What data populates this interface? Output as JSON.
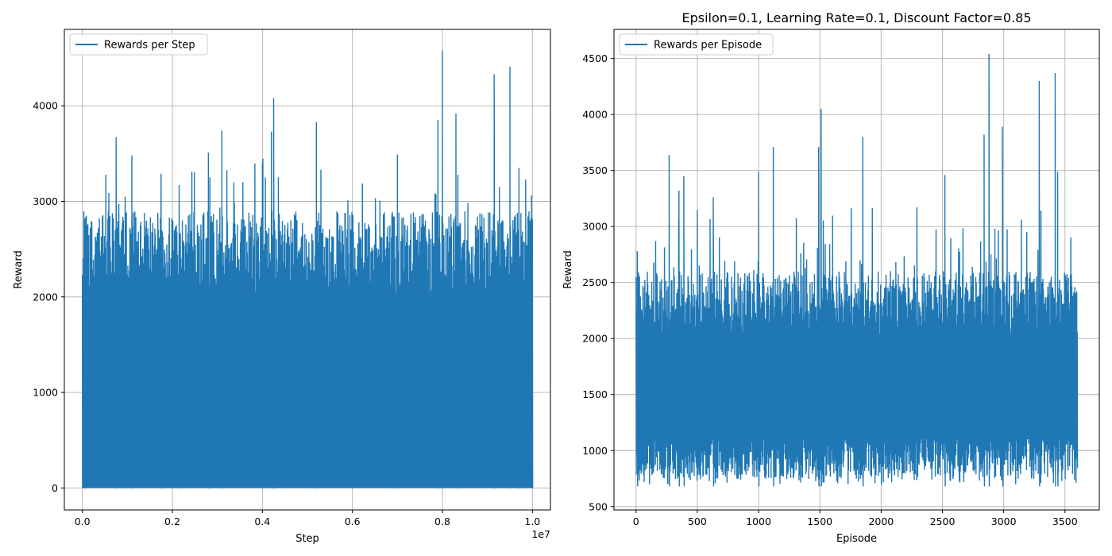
{
  "figure": {
    "title": "Epsilon=0.1, Learning Rate=0.1, Discount Factor=0.85"
  },
  "chart_data": [
    {
      "type": "line",
      "xlabel": "Step",
      "ylabel": "Reward",
      "xlim": [
        -0.04,
        1.04
      ],
      "ylim": [
        -230,
        4800
      ],
      "x_ticks": [
        0.0,
        0.2,
        0.4,
        0.6,
        0.8,
        1.0
      ],
      "x_tick_labels": [
        "0.0",
        "0.2",
        "0.4",
        "0.6",
        "0.8",
        "1.0"
      ],
      "x_offset_label": "1e7",
      "y_ticks": [
        0,
        1000,
        2000,
        3000,
        4000
      ],
      "y_tick_labels": [
        "0",
        "1000",
        "2000",
        "3000",
        "4000"
      ],
      "grid": true,
      "legend_position": "top-left",
      "series": [
        {
          "name": "Rewards per Step",
          "color": "#1f77b4",
          "x_range": [
            0.0,
            1.0
          ],
          "baseline": 0,
          "typical_max_range": [
            2000,
            2900
          ],
          "peaks": [
            {
              "x": 0.005,
              "y": 2810
            },
            {
              "x": 0.075,
              "y": 3670
            },
            {
              "x": 0.095,
              "y": 3050
            },
            {
              "x": 0.11,
              "y": 3480
            },
            {
              "x": 0.175,
              "y": 3290
            },
            {
              "x": 0.215,
              "y": 3170
            },
            {
              "x": 0.28,
              "y": 3510
            },
            {
              "x": 0.31,
              "y": 3740
            },
            {
              "x": 0.4,
              "y": 3400
            },
            {
              "x": 0.42,
              "y": 3730
            },
            {
              "x": 0.425,
              "y": 4080
            },
            {
              "x": 0.52,
              "y": 3830
            },
            {
              "x": 0.7,
              "y": 3490
            },
            {
              "x": 0.79,
              "y": 3850
            },
            {
              "x": 0.8,
              "y": 4580
            },
            {
              "x": 0.83,
              "y": 3920
            },
            {
              "x": 0.915,
              "y": 4330
            },
            {
              "x": 0.95,
              "y": 4410
            },
            {
              "x": 0.97,
              "y": 3350
            },
            {
              "x": 0.985,
              "y": 3230
            }
          ]
        }
      ]
    },
    {
      "type": "line",
      "title": "Epsilon=0.1, Learning Rate=0.1, Discount Factor=0.85",
      "xlabel": "Episode",
      "ylabel": "Reward",
      "xlim": [
        -180,
        3780
      ],
      "ylim": [
        470,
        4760
      ],
      "x_ticks": [
        0,
        500,
        1000,
        1500,
        2000,
        2500,
        3000,
        3500
      ],
      "x_tick_labels": [
        "0",
        "500",
        "1000",
        "1500",
        "2000",
        "2500",
        "3000",
        "3500"
      ],
      "y_ticks": [
        500,
        1000,
        1500,
        2000,
        2500,
        3000,
        3500,
        4000,
        4500
      ],
      "y_tick_labels": [
        "500",
        "1000",
        "1500",
        "2000",
        "2500",
        "3000",
        "3500",
        "4000",
        "4500"
      ],
      "grid": true,
      "legend_position": "top-left",
      "series": [
        {
          "name": "Rewards per Episode",
          "color": "#1f77b4",
          "x_range": [
            0,
            3600
          ],
          "typical_min_range": [
            680,
            1100
          ],
          "typical_max_range": [
            2000,
            2600
          ],
          "peaks": [
            {
              "x": 10,
              "y": 2780
            },
            {
              "x": 270,
              "y": 3640
            },
            {
              "x": 350,
              "y": 3320
            },
            {
              "x": 390,
              "y": 3450
            },
            {
              "x": 630,
              "y": 3260
            },
            {
              "x": 1000,
              "y": 3490
            },
            {
              "x": 1120,
              "y": 3710
            },
            {
              "x": 1490,
              "y": 3710
            },
            {
              "x": 1510,
              "y": 4050
            },
            {
              "x": 1850,
              "y": 3800
            },
            {
              "x": 2520,
              "y": 3460
            },
            {
              "x": 2840,
              "y": 3820
            },
            {
              "x": 2880,
              "y": 4540
            },
            {
              "x": 2990,
              "y": 3890
            },
            {
              "x": 3290,
              "y": 4300
            },
            {
              "x": 3420,
              "y": 4370
            },
            {
              "x": 3440,
              "y": 3490
            }
          ]
        }
      ]
    }
  ]
}
